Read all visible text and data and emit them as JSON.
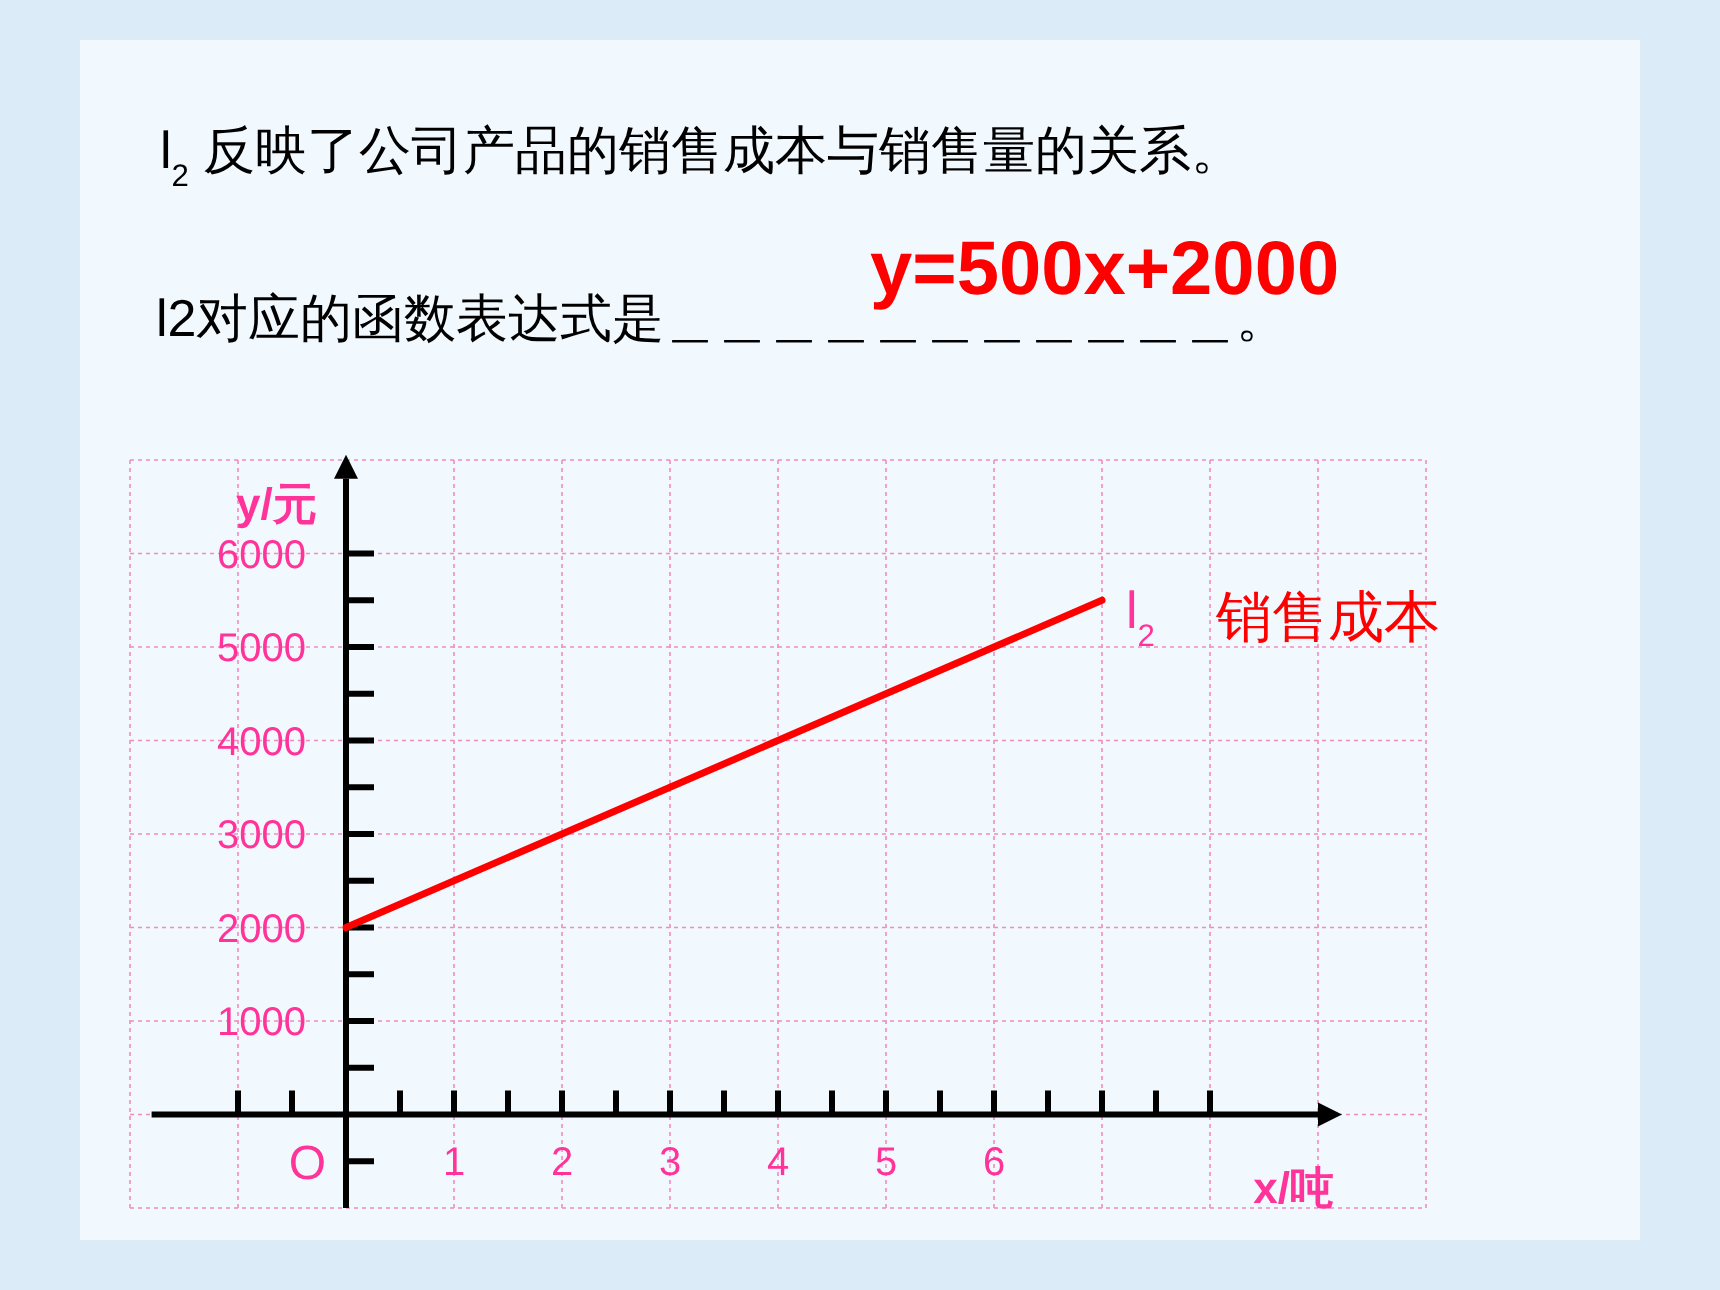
{
  "chart_data": {
    "type": "line",
    "title": "l$_{2}$ 反映了公司产品的销售成本与销售量的关系。",
    "subtitle": "l2对应的函数表达式是＿＿＿＿＿＿＿＿＿＿＿。",
    "xlabel": "x/吨",
    "ylabel": "y/元",
    "x": [
      0,
      7
    ],
    "series": [
      {
        "name": "l$_{2}$",
        "color": "#ff0000",
        "values": [
          2000,
          5500
        ]
      }
    ],
    "annotations": [
      {
        "text": "y=500x+2000"
      },
      {
        "text": "销售成本",
        "x": 7,
        "y": 5500
      },
      "O"
    ],
    "xlim": [
      -2,
      10
    ],
    "ylim": [
      -1000,
      7000
    ],
    "xticks": [
      {
        "value": -1,
        "label": null
      },
      {
        "value": -0.5,
        "label": null
      },
      {
        "value": 0,
        "label": null
      },
      {
        "value": 0.5,
        "label": null
      },
      1,
      {
        "value": 1.5,
        "label": null
      },
      2,
      {
        "value": 2.5,
        "label": null
      },
      3,
      {
        "value": 3.5,
        "label": null
      },
      4,
      {
        "value": 4.5,
        "label": null
      },
      5,
      {
        "value": 5.5,
        "label": null
      },
      6,
      {
        "value": 6.5,
        "label": null
      },
      {
        "value": 7,
        "label": null
      },
      {
        "value": 7.5,
        "label": null
      },
      {
        "value": 8,
        "label": null
      }
    ],
    "yticks": [
      {
        "value": -500,
        "label": null
      },
      {
        "value": 500,
        "label": null
      },
      1000,
      {
        "value": 1500,
        "label": null
      },
      2000,
      {
        "value": 2500,
        "label": null
      },
      3000,
      {
        "value": 3500,
        "label": null
      },
      4000,
      {
        "value": 4500,
        "label": null
      },
      5000,
      {
        "value": 5500,
        "label": null
      },
      6000
    ],
    "grid": true,
    "marker": "none",
    "line_style": "solid",
    "legend": false
  }
}
